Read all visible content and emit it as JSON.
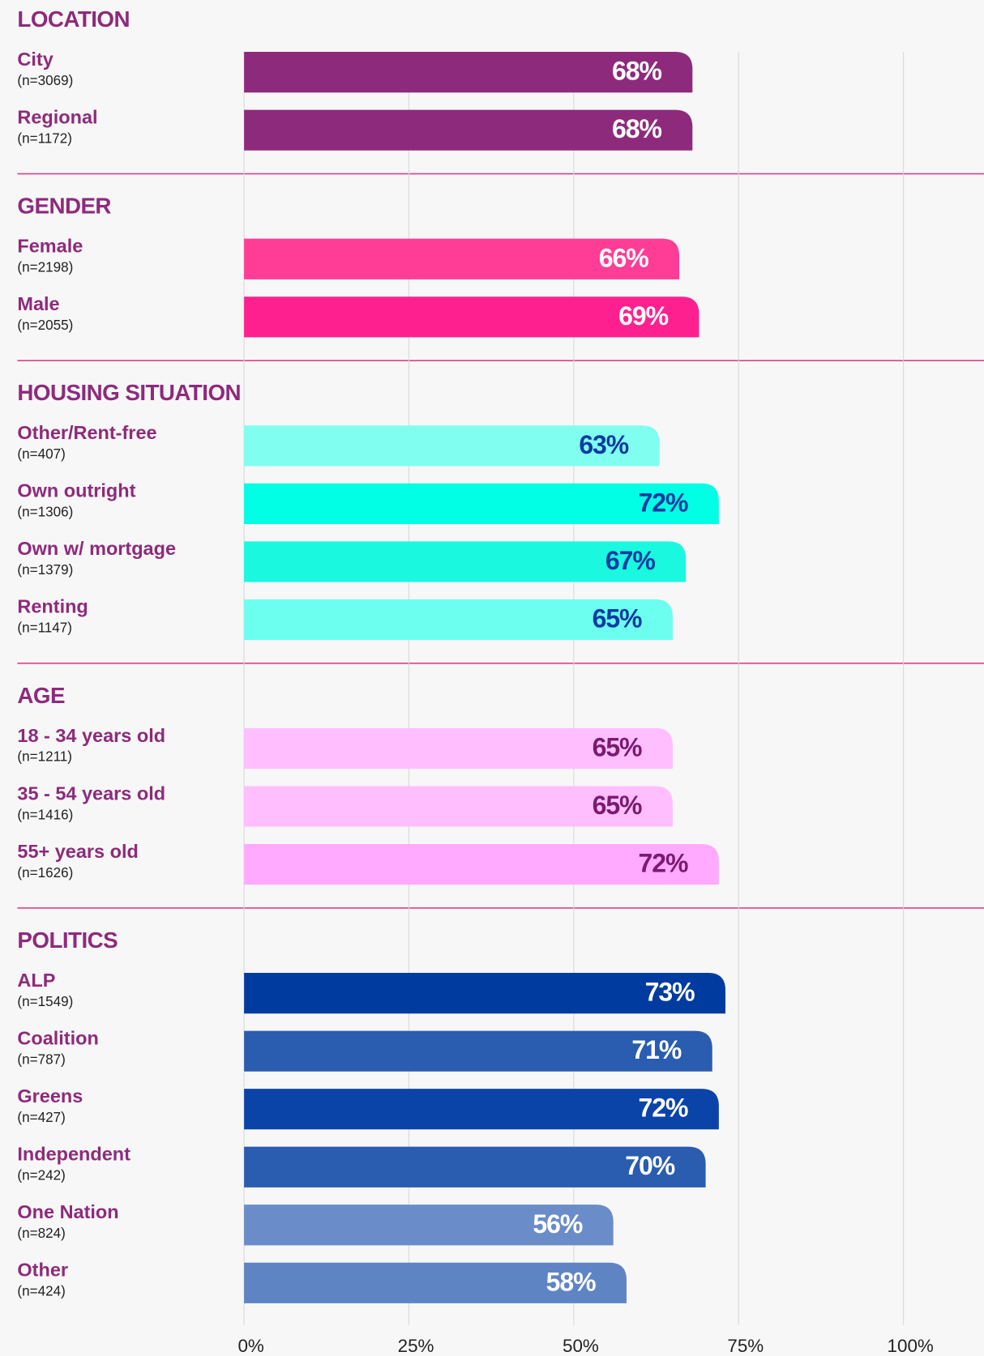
{
  "chart_data": {
    "type": "bar",
    "xlim": [
      0,
      100
    ],
    "xticks": [
      {
        "value": 0,
        "label": "0%"
      },
      {
        "value": 25,
        "label": "25%"
      },
      {
        "value": 50,
        "label": "50%"
      },
      {
        "value": 75,
        "label": "75%"
      },
      {
        "value": 100,
        "label": "100%"
      }
    ],
    "grid": true,
    "groups": [
      {
        "title": "LOCATION",
        "categories": [
          "City",
          "Regional"
        ],
        "sublabels": [
          "(n=3069)",
          "(n=1172)"
        ],
        "values": [
          68,
          68
        ],
        "value_labels": [
          "68%",
          "68%"
        ],
        "colors": [
          "#8e2a7c",
          "#8e2a7c"
        ],
        "label_color": "#ffffff"
      },
      {
        "title": "GENDER",
        "categories": [
          "Female",
          "Male"
        ],
        "sublabels": [
          "(n=2198)",
          "(n=2055)"
        ],
        "values": [
          66,
          69
        ],
        "value_labels": [
          "66%",
          "69%"
        ],
        "colors": [
          "#ff3c96",
          "#ff2090"
        ],
        "label_color": "#ffffff"
      },
      {
        "title": "HOUSING SITUATION",
        "categories": [
          "Other/Rent-free",
          "Own outright",
          "Own w/ mortgage",
          "Renting"
        ],
        "sublabels": [
          "(n=407)",
          "(n=1306)",
          "(n=1379)",
          "(n=1147)"
        ],
        "values": [
          63,
          72,
          67,
          65
        ],
        "value_labels": [
          "63%",
          "72%",
          "67%",
          "65%"
        ],
        "colors": [
          "#80fff0",
          "#00ffe4",
          "#1af8e0",
          "#6cfff0"
        ],
        "label_color": "#0a3ca0"
      },
      {
        "title": "AGE",
        "categories": [
          "18 - 34 years old",
          "35 - 54 years old",
          "55+ years old"
        ],
        "sublabels": [
          "(n=1211)",
          "(n=1416)",
          "(n=1626)"
        ],
        "values": [
          65,
          65,
          72
        ],
        "value_labels": [
          "65%",
          "65%",
          "72%"
        ],
        "colors": [
          "#ffbfff",
          "#ffbfff",
          "#ffaaff"
        ],
        "label_color": "#7a1a70"
      },
      {
        "title": "POLITICS",
        "categories": [
          "ALP",
          "Coalition",
          "Greens",
          "Independent",
          "One Nation",
          "Other"
        ],
        "sublabels": [
          "(n=1549)",
          "(n=787)",
          "(n=427)",
          "(n=242)",
          "(n=824)",
          "(n=424)"
        ],
        "values": [
          73,
          71,
          72,
          70,
          56,
          58
        ],
        "value_labels": [
          "73%",
          "71%",
          "72%",
          "70%",
          "56%",
          "58%"
        ],
        "colors": [
          "#003ca0",
          "#2a5cb0",
          "#0a44a8",
          "#2a5cb0",
          "#6a8cc8",
          "#5e84c4"
        ],
        "label_color": "#ffffff"
      }
    ]
  }
}
